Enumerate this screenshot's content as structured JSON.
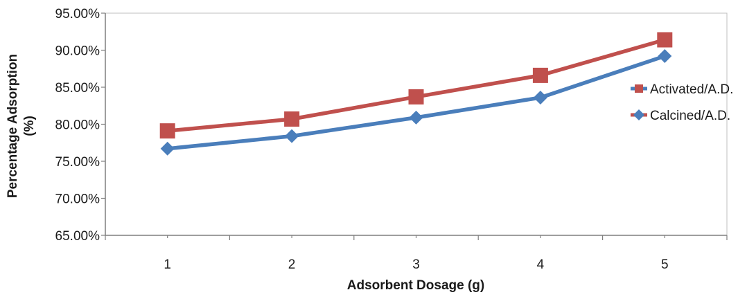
{
  "chart_data": {
    "type": "line",
    "x": [
      1,
      2,
      3,
      4,
      5
    ],
    "x_tick_labels": [
      "1",
      "2",
      "3",
      "4",
      "5"
    ],
    "xlabel": "Adsorbent  Dosage (g)",
    "ylabel_line1": "Percentage Adsorption",
    "ylabel_line2": "(%)",
    "ylim": [
      65,
      95
    ],
    "y_tick_values": [
      65,
      70,
      75,
      80,
      85,
      90,
      95
    ],
    "y_tick_labels": [
      "65.00%",
      "70.00%",
      "75.00%",
      "80.00%",
      "85.00%",
      "90.00%",
      "95.00%"
    ],
    "grid": false,
    "legend_position": "right",
    "series": [
      {
        "name": "Activated/A.D.",
        "values": [
          76.7,
          78.4,
          80.9,
          83.6,
          89.2
        ],
        "color": "#4a7ebb",
        "marker": "diamond"
      },
      {
        "name": "Calcined/A.D.",
        "values": [
          79.1,
          80.7,
          83.7,
          86.6,
          91.4
        ],
        "color": "#c0504d",
        "marker": "square"
      }
    ],
    "legend_icons": [
      {
        "series": 0,
        "marker": "square",
        "color": "#c0504d",
        "line_color": "#4a7ebb"
      },
      {
        "series": 1,
        "marker": "diamond",
        "color": "#4a7ebb",
        "line_color": "#c0504d"
      }
    ]
  }
}
